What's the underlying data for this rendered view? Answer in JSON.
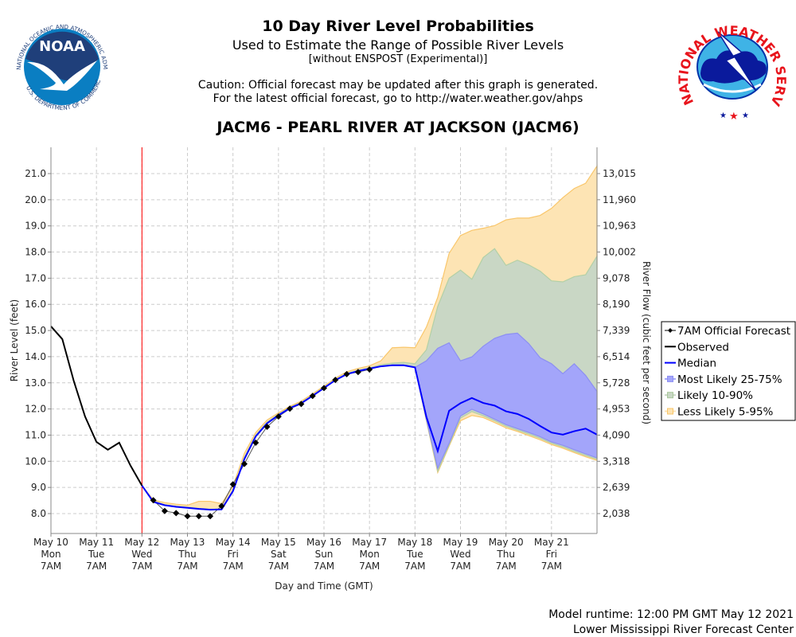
{
  "header": {
    "title": "10 Day River Level Probabilities",
    "subtitle": "Used to Estimate the Range of Possible River Levels",
    "subtitle2": "[without ENSPOST (Experimental)]",
    "caution1": "Caution: Official forecast may be updated after this graph is generated.",
    "caution2": "For the latest official forecast, go to http://water.weather.gov/ahps",
    "station": "JACM6 - PEARL RIVER AT JACKSON (JACM6)"
  },
  "logos": {
    "noaa": {
      "center": "NOAA",
      "ring_top": "NATIONAL OCEANIC AND ATMOSPHERIC ADMINISTRATION",
      "ring_bottom": "U.S. DEPARTMENT OF COMMERCE"
    },
    "nws": {
      "ring": "NATIONAL WEATHER SERVICE"
    }
  },
  "footer": {
    "runtime": "Model runtime: 12:00 PM GMT May 12 2021",
    "center": "Lower Mississippi River Forecast Center"
  },
  "chart_data": {
    "type": "area",
    "xlabel": "Day and Time (GMT)",
    "ylabel": "River Level (feet)",
    "ylabel_right": "River Flow (cubic feet per second)",
    "xlim": [
      "2021-05-10 07:00",
      "2021-05-22 07:00"
    ],
    "ylim": [
      7.2,
      22.0
    ],
    "grid": true,
    "legend_position": "right",
    "now_marker": "2021-05-12 07:00",
    "now_marker_color": "#ff0000",
    "x_ticks": [
      {
        "date": "2021-05-10 07:00",
        "lines": [
          "May 10",
          "Mon",
          "7AM"
        ]
      },
      {
        "date": "2021-05-11 07:00",
        "lines": [
          "May 11",
          "Tue",
          "7AM"
        ]
      },
      {
        "date": "2021-05-12 07:00",
        "lines": [
          "May 12",
          "Wed",
          "7AM"
        ]
      },
      {
        "date": "2021-05-13 07:00",
        "lines": [
          "May 13",
          "Thu",
          "7AM"
        ]
      },
      {
        "date": "2021-05-14 07:00",
        "lines": [
          "May 14",
          "Fri",
          "7AM"
        ]
      },
      {
        "date": "2021-05-15 07:00",
        "lines": [
          "May 15",
          "Sat",
          "7AM"
        ]
      },
      {
        "date": "2021-05-16 07:00",
        "lines": [
          "May 16",
          "Sun",
          "7AM"
        ]
      },
      {
        "date": "2021-05-17 07:00",
        "lines": [
          "May 17",
          "Mon",
          "7AM"
        ]
      },
      {
        "date": "2021-05-18 07:00",
        "lines": [
          "May 18",
          "Tue",
          "7AM"
        ]
      },
      {
        "date": "2021-05-19 07:00",
        "lines": [
          "May 19",
          "Wed",
          "7AM"
        ]
      },
      {
        "date": "2021-05-20 07:00",
        "lines": [
          "May 20",
          "Thu",
          "7AM"
        ]
      },
      {
        "date": "2021-05-21 07:00",
        "lines": [
          "May 21",
          "Fri",
          "7AM"
        ]
      }
    ],
    "y_ticks": [
      "8.0",
      "9.0",
      "10.0",
      "11.0",
      "12.0",
      "13.0",
      "14.0",
      "15.0",
      "16.0",
      "17.0",
      "18.0",
      "19.0",
      "20.0",
      "21.0"
    ],
    "y_ticks_right": [
      {
        "stage": 8,
        "label": "2,038"
      },
      {
        "stage": 9,
        "label": "2,639"
      },
      {
        "stage": 10,
        "label": "3,318"
      },
      {
        "stage": 11,
        "label": "4,090"
      },
      {
        "stage": 12,
        "label": "4,953"
      },
      {
        "stage": 13,
        "label": "5,728"
      },
      {
        "stage": 14,
        "label": "6,514"
      },
      {
        "stage": 15,
        "label": "7,339"
      },
      {
        "stage": 16,
        "label": "8,190"
      },
      {
        "stage": 17,
        "label": "9,078"
      },
      {
        "stage": 18,
        "label": "10,002"
      },
      {
        "stage": 19,
        "label": "10,963"
      },
      {
        "stage": 20,
        "label": "11,960"
      },
      {
        "stage": 21,
        "label": "13,015"
      }
    ],
    "legend": [
      {
        "key": "official",
        "label": "7AM Official Forecast",
        "color": "#000000"
      },
      {
        "key": "observed",
        "label": "Observed",
        "color": "#000000"
      },
      {
        "key": "median",
        "label": "Median",
        "color": "#0000ff"
      },
      {
        "key": "band25_75",
        "label": "Most Likely 25-75%",
        "color": "#a3a5fa"
      },
      {
        "key": "band10_90",
        "label": "Likely 10-90%",
        "color": "#c9d7c5"
      },
      {
        "key": "band5_95",
        "label": "Less Likely 5-95%",
        "color": "#fde4b4"
      }
    ],
    "observed": {
      "x": [
        "2021-05-10 07:00",
        "2021-05-10 13:00",
        "2021-05-10 19:00",
        "2021-05-11 01:00",
        "2021-05-11 07:00",
        "2021-05-11 13:00",
        "2021-05-11 19:00",
        "2021-05-12 01:00",
        "2021-05-12 07:00"
      ],
      "y": [
        15.16,
        14.67,
        13.08,
        11.71,
        10.74,
        10.44,
        10.71,
        9.83,
        9.07
      ]
    },
    "official": {
      "x": [
        "2021-05-12 13:00",
        "2021-05-12 19:00",
        "2021-05-13 01:00",
        "2021-05-13 07:00",
        "2021-05-13 13:00",
        "2021-05-13 19:00",
        "2021-05-14 01:00",
        "2021-05-14 07:00",
        "2021-05-14 13:00",
        "2021-05-14 19:00",
        "2021-05-15 01:00",
        "2021-05-15 07:00",
        "2021-05-15 13:00",
        "2021-05-15 19:00",
        "2021-05-16 01:00",
        "2021-05-16 07:00",
        "2021-05-16 13:00",
        "2021-05-16 19:00",
        "2021-05-17 01:00",
        "2021-05-17 07:00"
      ],
      "y": [
        8.51,
        8.1,
        8.02,
        7.9,
        7.9,
        7.9,
        8.29,
        9.12,
        9.9,
        10.71,
        11.32,
        11.71,
        12.01,
        12.19,
        12.5,
        12.8,
        13.11,
        13.33,
        13.41,
        13.51
      ]
    },
    "ensemble": {
      "x": [
        "2021-05-12 07:00",
        "2021-05-12 13:00",
        "2021-05-12 19:00",
        "2021-05-13 01:00",
        "2021-05-13 07:00",
        "2021-05-13 13:00",
        "2021-05-13 19:00",
        "2021-05-14 01:00",
        "2021-05-14 07:00",
        "2021-05-14 13:00",
        "2021-05-14 19:00",
        "2021-05-15 01:00",
        "2021-05-15 07:00",
        "2021-05-15 13:00",
        "2021-05-15 19:00",
        "2021-05-16 01:00",
        "2021-05-16 07:00",
        "2021-05-16 13:00",
        "2021-05-16 19:00",
        "2021-05-17 01:00",
        "2021-05-17 07:00",
        "2021-05-17 13:00",
        "2021-05-17 19:00",
        "2021-05-18 01:00",
        "2021-05-18 07:00",
        "2021-05-18 13:00",
        "2021-05-18 19:00",
        "2021-05-19 01:00",
        "2021-05-19 07:00",
        "2021-05-19 13:00",
        "2021-05-19 19:00",
        "2021-05-20 01:00",
        "2021-05-20 07:00",
        "2021-05-20 13:00",
        "2021-05-20 19:00",
        "2021-05-21 01:00",
        "2021-05-21 07:00",
        "2021-05-21 13:00",
        "2021-05-21 19:00",
        "2021-05-22 01:00",
        "2021-05-22 07:00"
      ],
      "median": [
        9.07,
        8.45,
        8.32,
        8.26,
        8.22,
        8.18,
        8.15,
        8.16,
        8.86,
        10.08,
        10.95,
        11.45,
        11.76,
        12.03,
        12.22,
        12.5,
        12.8,
        13.1,
        13.33,
        13.45,
        13.54,
        13.63,
        13.67,
        13.67,
        13.59,
        11.7,
        10.39,
        11.93,
        12.22,
        12.42,
        12.23,
        12.13,
        11.91,
        11.81,
        11.62,
        11.35,
        11.1,
        11.02,
        11.15,
        11.25,
        11.02
      ],
      "p95": [
        9.07,
        8.52,
        8.42,
        8.36,
        8.32,
        8.47,
        8.47,
        8.38,
        9.05,
        10.3,
        11.1,
        11.58,
        11.85,
        12.1,
        12.3,
        12.58,
        12.87,
        13.18,
        13.42,
        13.55,
        13.65,
        13.84,
        14.34,
        14.36,
        14.34,
        15.13,
        16.27,
        17.95,
        18.63,
        18.83,
        18.91,
        19.01,
        19.23,
        19.3,
        19.3,
        19.4,
        19.67,
        20.08,
        20.43,
        20.63,
        21.29
      ],
      "p90": [
        9.07,
        8.47,
        8.34,
        8.28,
        8.24,
        8.2,
        8.17,
        8.18,
        8.9,
        10.15,
        11.0,
        11.5,
        11.8,
        12.06,
        12.25,
        12.53,
        12.83,
        13.13,
        13.36,
        13.48,
        13.57,
        13.69,
        13.75,
        13.78,
        13.73,
        14.26,
        15.92,
        17.0,
        17.31,
        16.96,
        17.79,
        18.13,
        17.49,
        17.69,
        17.51,
        17.27,
        16.9,
        16.86,
        17.06,
        17.13,
        17.84
      ],
      "p75": [
        9.07,
        8.45,
        8.32,
        8.26,
        8.22,
        8.18,
        8.15,
        8.16,
        8.86,
        10.08,
        10.95,
        11.45,
        11.76,
        12.03,
        12.22,
        12.5,
        12.8,
        13.1,
        13.33,
        13.45,
        13.54,
        13.63,
        13.67,
        13.67,
        13.59,
        13.84,
        14.32,
        14.53,
        13.84,
        13.99,
        14.4,
        14.7,
        14.85,
        14.9,
        14.5,
        13.96,
        13.73,
        13.35,
        13.73,
        13.28,
        12.67
      ],
      "p25": [
        9.07,
        8.45,
        8.32,
        8.26,
        8.22,
        8.18,
        8.15,
        8.16,
        8.86,
        10.08,
        10.95,
        11.45,
        11.76,
        12.03,
        12.22,
        12.5,
        12.8,
        13.1,
        13.33,
        13.45,
        13.54,
        13.63,
        13.67,
        13.67,
        13.59,
        11.61,
        9.73,
        10.69,
        11.73,
        11.99,
        11.81,
        11.61,
        11.4,
        11.25,
        11.1,
        10.94,
        10.74,
        10.61,
        10.44,
        10.28,
        10.13
      ],
      "p10": [
        9.07,
        8.45,
        8.32,
        8.26,
        8.22,
        8.18,
        8.15,
        8.16,
        8.86,
        10.08,
        10.95,
        11.45,
        11.76,
        12.03,
        12.22,
        12.5,
        12.8,
        13.1,
        13.33,
        13.45,
        13.54,
        13.63,
        13.67,
        13.67,
        13.59,
        11.58,
        9.62,
        10.62,
        11.65,
        11.9,
        11.74,
        11.55,
        11.34,
        11.19,
        11.04,
        10.88,
        10.69,
        10.55,
        10.38,
        10.22,
        10.08
      ],
      "p5": [
        9.07,
        8.45,
        8.32,
        8.26,
        8.22,
        8.18,
        8.15,
        8.16,
        8.86,
        10.08,
        10.95,
        11.45,
        11.76,
        12.03,
        12.22,
        12.5,
        12.8,
        13.1,
        13.33,
        13.45,
        13.54,
        13.63,
        13.67,
        13.67,
        13.59,
        11.55,
        9.57,
        10.58,
        11.55,
        11.75,
        11.67,
        11.48,
        11.28,
        11.14,
        10.98,
        10.82,
        10.64,
        10.5,
        10.33,
        10.17,
        10.03
      ]
    }
  }
}
